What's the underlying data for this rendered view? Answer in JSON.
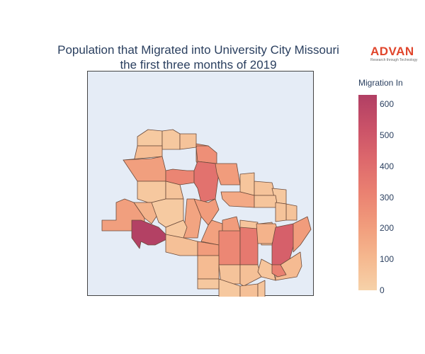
{
  "title": {
    "line1": "Population that Migrated into University City Missouri",
    "line2": "the first three months of 2019"
  },
  "logo": {
    "name": "ADVAN",
    "tagline": "Research through Technology"
  },
  "colorbar": {
    "title": "Migration In",
    "ticks": [
      "0",
      "100",
      "200",
      "300",
      "400",
      "500",
      "600"
    ],
    "min": 0,
    "max": 630,
    "colorscale": [
      "#f6d2a9",
      "#f5b78e",
      "#f19c7c",
      "#ea8171",
      "#dd686c",
      "#ca5268",
      "#b13f64"
    ]
  },
  "map": {
    "background_color": "#e5ecf6",
    "border_color": "#6b4a3a",
    "regions": [
      {
        "value": 30
      },
      {
        "value": 40
      },
      {
        "value": 60
      },
      {
        "value": 230
      },
      {
        "value": 260
      },
      {
        "value": 80
      },
      {
        "value": 200
      },
      {
        "value": 300
      },
      {
        "value": 380
      },
      {
        "value": 210
      },
      {
        "value": 40
      },
      {
        "value": 60
      },
      {
        "value": 50
      },
      {
        "value": 60
      },
      {
        "value": 40
      },
      {
        "value": 60
      },
      {
        "value": 160
      },
      {
        "value": 50
      },
      {
        "value": 60
      },
      {
        "value": 210
      },
      {
        "value": 180
      },
      {
        "value": 200
      },
      {
        "value": 120
      },
      {
        "value": 30
      },
      {
        "value": 40
      },
      {
        "value": 190
      },
      {
        "value": 210
      },
      {
        "value": 50
      },
      {
        "value": 50
      },
      {
        "value": 620
      },
      {
        "value": 70
      },
      {
        "value": 210
      },
      {
        "value": 290
      },
      {
        "value": 90
      },
      {
        "value": 350
      },
      {
        "value": 120
      },
      {
        "value": 460
      },
      {
        "value": 210
      },
      {
        "value": 60
      },
      {
        "value": 70
      },
      {
        "value": 50
      },
      {
        "value": 90
      },
      {
        "value": 40
      },
      {
        "value": 70
      },
      {
        "value": 50
      },
      {
        "value": 40
      },
      {
        "value": 320
      }
    ]
  }
}
